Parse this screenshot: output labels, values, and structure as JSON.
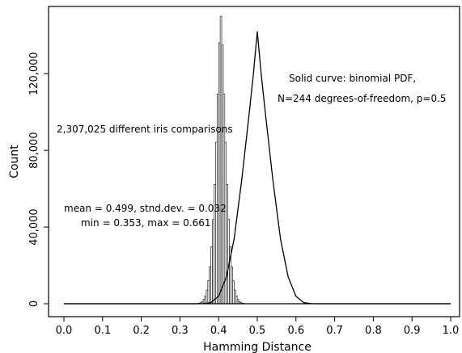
{
  "chart_data": {
    "type": "bar",
    "title": "",
    "xlabel": "Hamming Distance",
    "ylabel": "Count",
    "xlim": [
      0.0,
      1.0
    ],
    "ylim": [
      0,
      150000
    ],
    "grid": false,
    "xticks": [
      "0.0",
      "0.1",
      "0.2",
      "0.3",
      "0.4",
      "0.5",
      "0.6",
      "0.7",
      "0.8",
      "0.9",
      "1.0"
    ],
    "yticks": [
      "0",
      "40,000",
      "80,000",
      "120,000"
    ],
    "histogram": {
      "bin_width": 0.004,
      "x_start": 0.34,
      "counts": [
        56,
        128,
        279,
        583,
        1163,
        2223,
        4072,
        7144,
        12004,
        19318,
        29776,
        43962,
        62189,
        84282,
        109438,
        136113,
        150000,
        135000,
        109438,
        84282,
        62189,
        43962,
        29776,
        19318,
        12004,
        7144,
        4072,
        2223,
        1163,
        583,
        279,
        128,
        56
      ],
      "x_values": [
        0.34,
        0.344,
        0.348,
        0.352,
        0.356,
        0.36,
        0.364,
        0.368,
        0.372,
        0.376,
        0.38,
        0.384,
        0.388,
        0.392,
        0.396,
        0.4,
        0.404,
        0.408,
        0.412,
        0.416,
        0.42,
        0.424,
        0.428,
        0.432,
        0.436,
        0.44,
        0.444,
        0.448,
        0.452,
        0.456,
        0.46,
        0.464,
        0.468
      ]
    },
    "series": [
      {
        "name": "binomial PDF",
        "x": [
          0.0,
          0.34,
          0.36,
          0.38,
          0.4,
          0.42,
          0.44,
          0.46,
          0.48,
          0.49,
          0.5,
          0.51,
          0.52,
          0.54,
          0.56,
          0.58,
          0.6,
          0.62,
          0.64,
          0.66,
          1.0
        ],
        "y": [
          0,
          0,
          37,
          550,
          3900,
          13900,
          33700,
          65000,
          101000,
          120000,
          142000,
          120000,
          101000,
          65000,
          33700,
          13900,
          3900,
          550,
          37,
          0,
          0
        ]
      }
    ],
    "annotations": [
      "Solid curve:  binomial PDF,",
      "N=244 degrees-of-freedom, p=0.5",
      "2,307,025 different iris comparisons",
      "mean = 0.499,  stnd.dev. = 0.032",
      "min = 0.353,  max = 0.661"
    ]
  }
}
